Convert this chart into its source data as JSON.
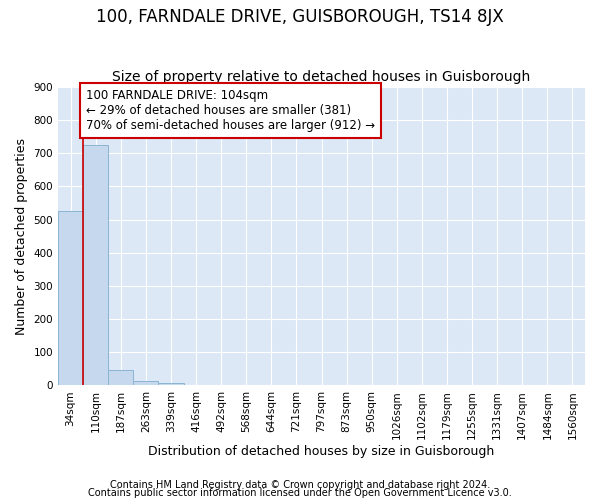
{
  "title": "100, FARNDALE DRIVE, GUISBOROUGH, TS14 8JX",
  "subtitle": "Size of property relative to detached houses in Guisborough",
  "xlabel": "Distribution of detached houses by size in Guisborough",
  "ylabel": "Number of detached properties",
  "footnote1": "Contains HM Land Registry data © Crown copyright and database right 2024.",
  "footnote2": "Contains public sector information licensed under the Open Government Licence v3.0.",
  "bar_labels": [
    "34sqm",
    "110sqm",
    "187sqm",
    "263sqm",
    "339sqm",
    "416sqm",
    "492sqm",
    "568sqm",
    "644sqm",
    "721sqm",
    "797sqm",
    "873sqm",
    "950sqm",
    "1026sqm",
    "1102sqm",
    "1179sqm",
    "1255sqm",
    "1331sqm",
    "1407sqm",
    "1484sqm",
    "1560sqm"
  ],
  "bar_values": [
    525,
    725,
    47,
    12,
    8,
    0,
    0,
    0,
    0,
    0,
    0,
    0,
    0,
    0,
    0,
    0,
    0,
    0,
    0,
    0,
    0
  ],
  "bar_color": "#c5d8ed",
  "bar_edge_color": "#8ab4d4",
  "highlight_line_color": "#cc0000",
  "annotation_line1": "100 FARNDALE DRIVE: 104sqm",
  "annotation_line2": "← 29% of detached houses are smaller (381)",
  "annotation_line3": "70% of semi-detached houses are larger (912) →",
  "annotation_box_facecolor": "#ffffff",
  "annotation_box_edgecolor": "#cc0000",
  "plot_bg_color": "#dce8f5",
  "fig_bg_color": "#ffffff",
  "ylim": [
    0,
    900
  ],
  "yticks": [
    0,
    100,
    200,
    300,
    400,
    500,
    600,
    700,
    800,
    900
  ],
  "title_fontsize": 12,
  "subtitle_fontsize": 10,
  "axis_label_fontsize": 9,
  "tick_fontsize": 7.5,
  "annotation_fontsize": 8.5,
  "footnote_fontsize": 7
}
